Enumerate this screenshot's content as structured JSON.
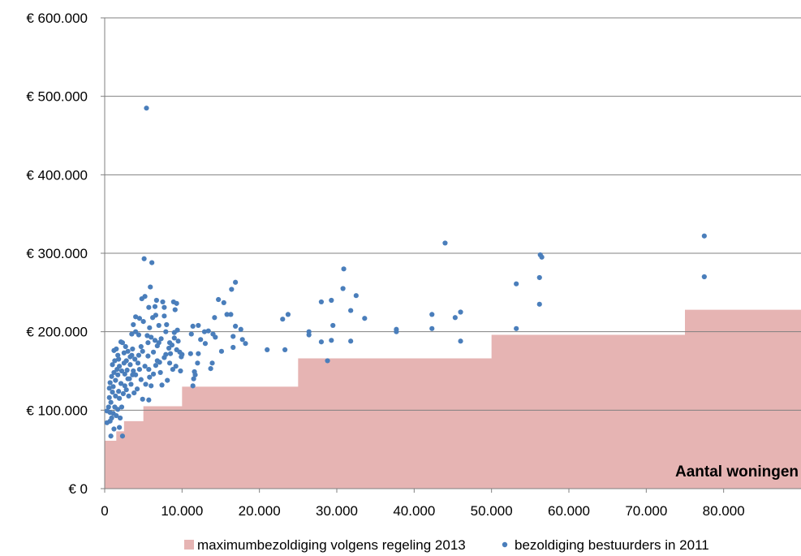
{
  "chart_data": {
    "type": "scatter",
    "xlabel": "Aantal woningen",
    "ylabel": "",
    "xlim": [
      0,
      90000
    ],
    "ylim": [
      0,
      600000
    ],
    "x_ticks": [
      0,
      10000,
      20000,
      30000,
      40000,
      50000,
      60000,
      70000,
      80000
    ],
    "x_tick_labels": [
      "0",
      "10.000",
      "20.000",
      "30.000",
      "40.000",
      "50.000",
      "60.000",
      "70.000",
      "80.000"
    ],
    "y_ticks": [
      0,
      100000,
      200000,
      300000,
      400000,
      500000,
      600000
    ],
    "y_tick_labels": [
      "€ 0",
      "€ 100.000",
      "€ 200.000",
      "€ 300.000",
      "€ 400.000",
      "€ 500.000",
      "€ 600.000"
    ],
    "grid": true,
    "legend_position": "bottom",
    "colors": {
      "area": "#e6b4b3",
      "points": "#4a7ebb",
      "grid": "#808080",
      "axis": "#808080"
    },
    "series": [
      {
        "name": "maximumbezoldiging volgens regeling 2013",
        "kind": "step-area",
        "steps": [
          {
            "x_from": 0,
            "x_to": 1500,
            "y": 61000
          },
          {
            "x_from": 1500,
            "x_to": 2500,
            "y": 73000
          },
          {
            "x_from": 2500,
            "x_to": 5000,
            "y": 86000
          },
          {
            "x_from": 5000,
            "x_to": 10000,
            "y": 105000
          },
          {
            "x_from": 10000,
            "x_to": 25000,
            "y": 130000
          },
          {
            "x_from": 25000,
            "x_to": 50000,
            "y": 166000
          },
          {
            "x_from": 50000,
            "x_to": 75000,
            "y": 196000
          },
          {
            "x_from": 75000,
            "x_to": 90000,
            "y": 228000
          }
        ]
      },
      {
        "name": "bezoldiging bestuurders in 2011",
        "kind": "scatter",
        "points": [
          [
            5400,
            485000
          ],
          [
            44000,
            313000
          ],
          [
            77500,
            322000
          ],
          [
            77500,
            270000
          ],
          [
            56300,
            298000
          ],
          [
            56500,
            295000
          ],
          [
            56200,
            269000
          ],
          [
            56200,
            235000
          ],
          [
            53200,
            261000
          ],
          [
            53200,
            204000
          ],
          [
            46000,
            225000
          ],
          [
            45300,
            218000
          ],
          [
            46000,
            188000
          ],
          [
            42300,
            222000
          ],
          [
            42300,
            204000
          ],
          [
            37700,
            203000
          ],
          [
            37700,
            200000
          ],
          [
            33600,
            217000
          ],
          [
            32500,
            246000
          ],
          [
            31800,
            227000
          ],
          [
            31800,
            188000
          ],
          [
            30900,
            280000
          ],
          [
            30800,
            255000
          ],
          [
            29300,
            240000
          ],
          [
            29500,
            208000
          ],
          [
            29300,
            189000
          ],
          [
            28800,
            163000
          ],
          [
            28000,
            238000
          ],
          [
            28000,
            187000
          ],
          [
            26400,
            200000
          ],
          [
            26400,
            196000
          ],
          [
            23700,
            222000
          ],
          [
            23000,
            216000
          ],
          [
            23300,
            177000
          ],
          [
            21000,
            177000
          ],
          [
            16900,
            263000
          ],
          [
            16400,
            254000
          ],
          [
            16300,
            222000
          ],
          [
            16900,
            207000
          ],
          [
            16600,
            194000
          ],
          [
            16600,
            180000
          ],
          [
            17600,
            203000
          ],
          [
            17800,
            190000
          ],
          [
            18200,
            185000
          ],
          [
            15800,
            222000
          ],
          [
            15400,
            237000
          ],
          [
            14700,
            241000
          ],
          [
            15100,
            175000
          ],
          [
            14200,
            218000
          ],
          [
            14300,
            193000
          ],
          [
            13900,
            160000
          ],
          [
            13700,
            153000
          ],
          [
            14000,
            197000
          ],
          [
            13400,
            201000
          ],
          [
            13000,
            185000
          ],
          [
            12900,
            200000
          ],
          [
            12100,
            208000
          ],
          [
            12400,
            190000
          ],
          [
            12100,
            172000
          ],
          [
            12000,
            160000
          ],
          [
            11600,
            149000
          ],
          [
            11500,
            140000
          ],
          [
            11400,
            131000
          ],
          [
            11400,
            207000
          ],
          [
            11700,
            145000
          ],
          [
            11100,
            172000
          ],
          [
            11200,
            197000
          ],
          [
            6100,
            288000
          ],
          [
            5100,
            293000
          ],
          [
            5900,
            257000
          ],
          [
            4800,
            242000
          ],
          [
            5200,
            245000
          ],
          [
            6700,
            240000
          ],
          [
            7500,
            238000
          ],
          [
            8900,
            238000
          ],
          [
            9300,
            236000
          ],
          [
            6500,
            232000
          ],
          [
            7700,
            231000
          ],
          [
            5700,
            231000
          ],
          [
            9100,
            228000
          ],
          [
            7700,
            220000
          ],
          [
            6600,
            221000
          ],
          [
            6200,
            218000
          ],
          [
            4000,
            219000
          ],
          [
            4500,
            217000
          ],
          [
            5000,
            213000
          ],
          [
            8000,
            209000
          ],
          [
            3700,
            209000
          ],
          [
            5800,
            205000
          ],
          [
            7000,
            208000
          ],
          [
            9400,
            202000
          ],
          [
            4000,
            200000
          ],
          [
            3500,
            197000
          ],
          [
            5500,
            195000
          ],
          [
            6000,
            193000
          ],
          [
            7300,
            191000
          ],
          [
            7000,
            186000
          ],
          [
            8400,
            186000
          ],
          [
            9000,
            192000
          ],
          [
            6800,
            182000
          ],
          [
            8300,
            179000
          ],
          [
            9300,
            177000
          ],
          [
            9700,
            174000
          ],
          [
            8500,
            172000
          ],
          [
            9900,
            168000
          ],
          [
            7700,
            167000
          ],
          [
            6800,
            163000
          ],
          [
            8400,
            160000
          ],
          [
            9200,
            156000
          ],
          [
            8800,
            152000
          ],
          [
            9800,
            150000
          ],
          [
            7200,
            148000
          ],
          [
            6300,
            146000
          ],
          [
            5700,
            152000
          ],
          [
            5200,
            156000
          ],
          [
            4500,
            152000
          ],
          [
            4300,
            160000
          ],
          [
            3900,
            165000
          ],
          [
            3500,
            170000
          ],
          [
            3000,
            175000
          ],
          [
            2700,
            181000
          ],
          [
            2300,
            186000
          ],
          [
            2100,
            187000
          ],
          [
            1500,
            178000
          ],
          [
            1200,
            176000
          ],
          [
            1700,
            170000
          ],
          [
            1300,
            163000
          ],
          [
            2800,
            163000
          ],
          [
            3300,
            158000
          ],
          [
            3700,
            150000
          ],
          [
            4000,
            145000
          ],
          [
            4700,
            139000
          ],
          [
            5300,
            133000
          ],
          [
            6000,
            131000
          ],
          [
            7400,
            132000
          ],
          [
            8100,
            138000
          ],
          [
            5800,
            142000
          ],
          [
            4200,
            127000
          ],
          [
            4900,
            114000
          ],
          [
            5700,
            113000
          ],
          [
            3800,
            122000
          ],
          [
            3400,
            133000
          ],
          [
            3000,
            140000
          ],
          [
            2600,
            146000
          ],
          [
            2200,
            150000
          ],
          [
            1900,
            156000
          ],
          [
            1600,
            152000
          ],
          [
            1200,
            148000
          ],
          [
            900,
            143000
          ],
          [
            700,
            135000
          ],
          [
            600,
            128000
          ],
          [
            1000,
            123000
          ],
          [
            1400,
            118000
          ],
          [
            1900,
            115000
          ],
          [
            2400,
            121000
          ],
          [
            2800,
            126000
          ],
          [
            3100,
            118000
          ],
          [
            2200,
            104000
          ],
          [
            1700,
            101000
          ],
          [
            1300,
            104000
          ],
          [
            800,
            110000
          ],
          [
            500,
            104000
          ],
          [
            300,
            99000
          ],
          [
            700,
            97000
          ],
          [
            1100,
            96000
          ],
          [
            1500,
            93000
          ],
          [
            2000,
            90000
          ],
          [
            700,
            86000
          ],
          [
            300,
            84000
          ],
          [
            1900,
            78000
          ],
          [
            1200,
            76000
          ],
          [
            800,
            67000
          ],
          [
            2300,
            67000
          ],
          [
            1800,
            124000
          ],
          [
            2600,
            131000
          ],
          [
            3200,
            140000
          ],
          [
            3600,
            145000
          ],
          [
            4400,
            170000
          ],
          [
            4900,
            175000
          ],
          [
            5600,
            169000
          ],
          [
            6300,
            174000
          ],
          [
            6600,
            157000
          ],
          [
            7100,
            161000
          ],
          [
            7900,
            171000
          ],
          [
            8700,
            183000
          ],
          [
            9500,
            188000
          ],
          [
            10000,
            171000
          ],
          [
            9000,
            199000
          ],
          [
            7900,
            200000
          ],
          [
            3300,
            168000
          ],
          [
            2500,
            173000
          ],
          [
            1800,
            165000
          ],
          [
            1000,
            158000
          ],
          [
            2100,
            134000
          ],
          [
            1400,
            138000
          ],
          [
            2900,
            151000
          ],
          [
            3600,
            178000
          ],
          [
            4700,
            181000
          ],
          [
            5600,
            186000
          ],
          [
            6500,
            189000
          ],
          [
            4400,
            196000
          ],
          [
            2500,
            160000
          ],
          [
            1700,
            145000
          ],
          [
            1100,
            130000
          ],
          [
            600,
            116000
          ],
          [
            900,
            90000
          ]
        ]
      }
    ]
  }
}
